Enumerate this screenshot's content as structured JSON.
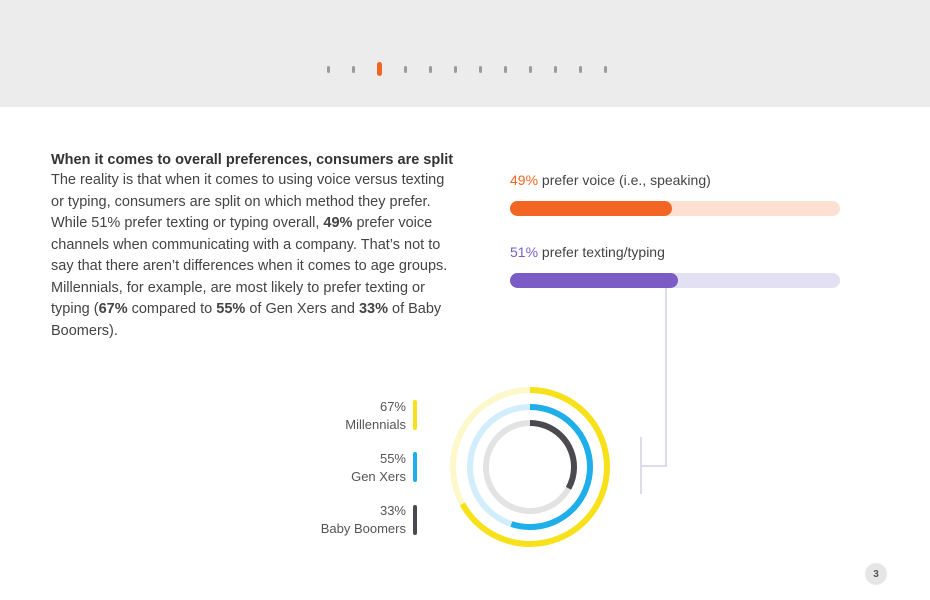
{
  "pagination": {
    "dot_count": 12,
    "active_index": 2,
    "active_color": "#f26522",
    "inactive_color": "#9b9b9b"
  },
  "article": {
    "heading": "When it comes to overall preferences, consumers are split",
    "p1": "The reality is that when it comes to using voice versus texting or typing, consumers are split on which method they prefer. While 51% prefer texting or typing overall, ",
    "b1": "49%",
    "p2": " prefer voice channels when communicating with a company. That’s not to say that there aren’t differences when it comes to age groups. Millennials, for example, are most likely to prefer texting or typing (",
    "b2": "67%",
    "p3": " compared to ",
    "b3": "55%",
    "p4": " of Gen Xers and ",
    "b4": "33%",
    "p5": " of Baby Boomers)."
  },
  "bars": {
    "voice": {
      "percent_text": "49%",
      "label": " prefer voice (i.e., speaking)",
      "value": 0.49,
      "color": "#f26522",
      "track_color": "#fde0d2"
    },
    "text": {
      "percent_text": "51%",
      "label": " prefer texting/typing",
      "value": 0.51,
      "color": "#7b5cc7",
      "track_color": "#e3e0f3"
    }
  },
  "age_groups": [
    {
      "percent_text": "67%",
      "name": "Millennials",
      "value": 0.67,
      "color": "#f7e11a",
      "track_color": "#fdf8c9"
    },
    {
      "percent_text": "55%",
      "name": "Gen Xers",
      "value": 0.55,
      "color": "#1eaeea",
      "track_color": "#d2edfb"
    },
    {
      "percent_text": "33%",
      "name": "Baby Boomers",
      "value": 0.33,
      "color": "#4a4a4f",
      "track_color": "#e3e3e3"
    }
  ],
  "page": {
    "number": "3"
  }
}
